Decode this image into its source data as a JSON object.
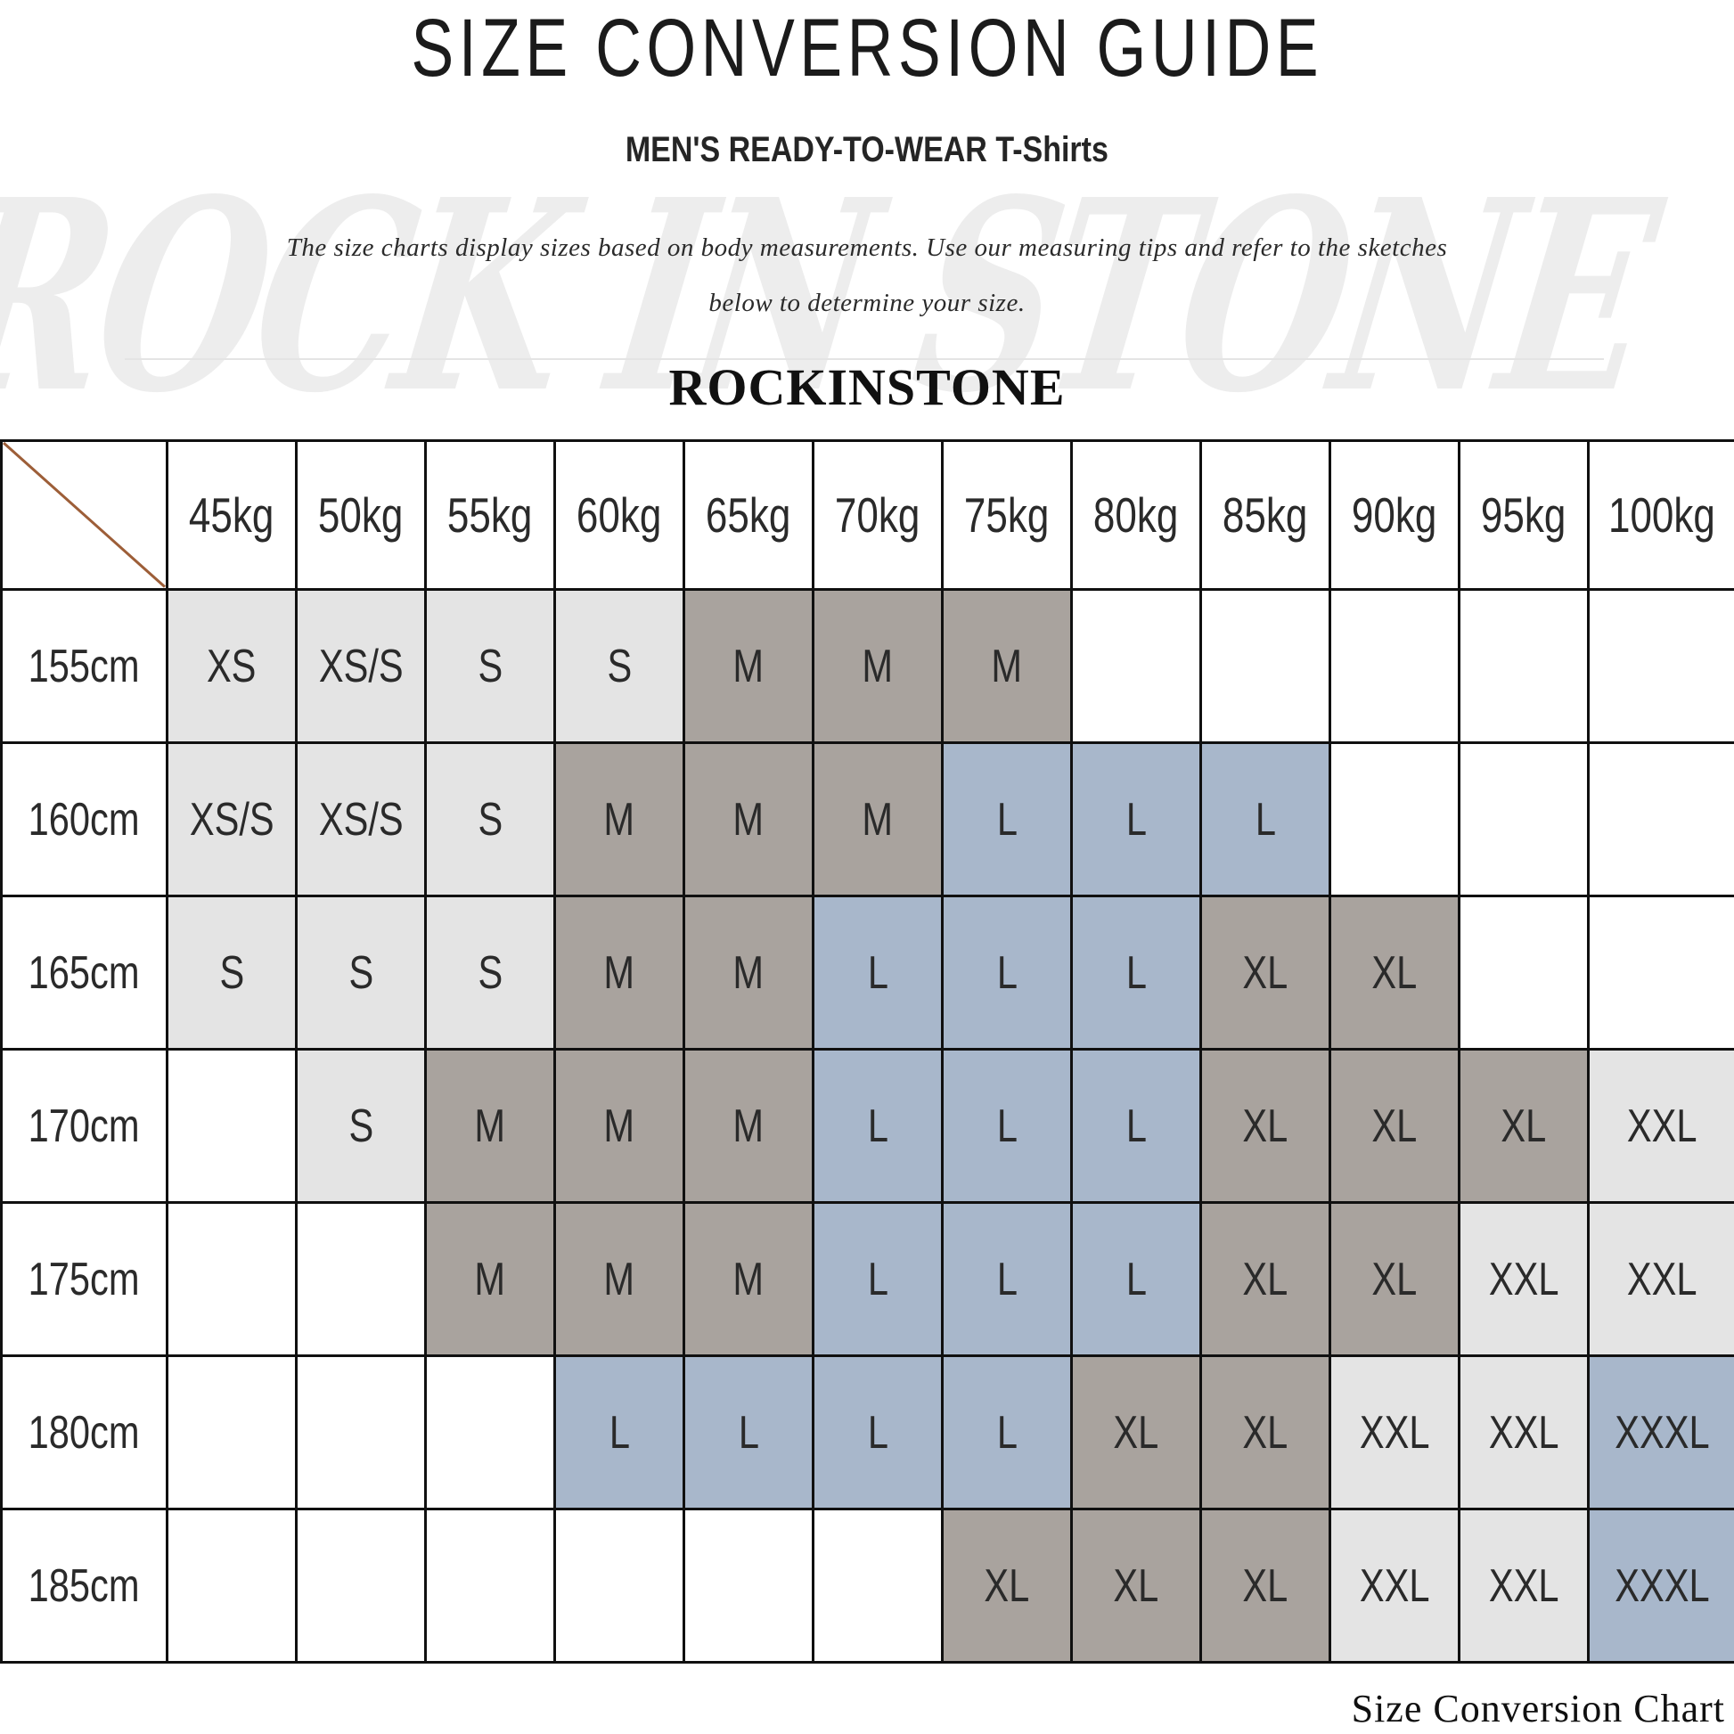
{
  "page": {
    "title": "SIZE CONVERSION GUIDE",
    "subtitle_category": "MEN'S READY-TO-WEAR",
    "subtitle_product": "T-Shirts",
    "description_line1": "The size charts display sizes based on body measurements.  Use our measuring tips and refer to the sketches",
    "description_line2": "below to determine your size.",
    "brand": "ROCKINSTONE",
    "watermark": "ROCK IN STONE",
    "footer_caption": "Size Conversion Chart"
  },
  "colors": {
    "cell_light_gray": "#e4e4e4",
    "cell_dark_taupe": "#a9a39e",
    "cell_steel_blue": "#a8b7cb",
    "table_border": "#101010",
    "diagonal_line": "#9d5e38",
    "watermark_gray": "#ededed"
  },
  "size_table": {
    "corner_label": "",
    "weight_headers": [
      "45kg",
      "50kg",
      "55kg",
      "60kg",
      "65kg",
      "70kg",
      "75kg",
      "80kg",
      "85kg",
      "90kg",
      "95kg",
      "100kg"
    ],
    "rows": [
      {
        "height": "155cm",
        "cells": [
          {
            "size": "XS",
            "bg": "light"
          },
          {
            "size": "XS/S",
            "bg": "light"
          },
          {
            "size": "S",
            "bg": "light"
          },
          {
            "size": "S",
            "bg": "light"
          },
          {
            "size": "M",
            "bg": "taupe"
          },
          {
            "size": "M",
            "bg": "taupe"
          },
          {
            "size": "M",
            "bg": "taupe"
          },
          {
            "size": "",
            "bg": "none"
          },
          {
            "size": "",
            "bg": "none"
          },
          {
            "size": "",
            "bg": "none"
          },
          {
            "size": "",
            "bg": "none"
          },
          {
            "size": "",
            "bg": "none"
          }
        ]
      },
      {
        "height": "160cm",
        "cells": [
          {
            "size": "XS/S",
            "bg": "light"
          },
          {
            "size": "XS/S",
            "bg": "light"
          },
          {
            "size": "S",
            "bg": "light"
          },
          {
            "size": "M",
            "bg": "taupe"
          },
          {
            "size": "M",
            "bg": "taupe"
          },
          {
            "size": "M",
            "bg": "taupe"
          },
          {
            "size": "L",
            "bg": "blue"
          },
          {
            "size": "L",
            "bg": "blue"
          },
          {
            "size": "L",
            "bg": "blue"
          },
          {
            "size": "",
            "bg": "none"
          },
          {
            "size": "",
            "bg": "none"
          },
          {
            "size": "",
            "bg": "none"
          }
        ]
      },
      {
        "height": "165cm",
        "cells": [
          {
            "size": "S",
            "bg": "light"
          },
          {
            "size": "S",
            "bg": "light"
          },
          {
            "size": "S",
            "bg": "light"
          },
          {
            "size": "M",
            "bg": "taupe"
          },
          {
            "size": "M",
            "bg": "taupe"
          },
          {
            "size": "L",
            "bg": "blue"
          },
          {
            "size": "L",
            "bg": "blue"
          },
          {
            "size": "L",
            "bg": "blue"
          },
          {
            "size": "XL",
            "bg": "taupe"
          },
          {
            "size": "XL",
            "bg": "taupe"
          },
          {
            "size": "",
            "bg": "none"
          },
          {
            "size": "",
            "bg": "none"
          }
        ]
      },
      {
        "height": "170cm",
        "cells": [
          {
            "size": "",
            "bg": "none"
          },
          {
            "size": "S",
            "bg": "light"
          },
          {
            "size": "M",
            "bg": "taupe"
          },
          {
            "size": "M",
            "bg": "taupe"
          },
          {
            "size": "M",
            "bg": "taupe"
          },
          {
            "size": "L",
            "bg": "blue"
          },
          {
            "size": "L",
            "bg": "blue"
          },
          {
            "size": "L",
            "bg": "blue"
          },
          {
            "size": "XL",
            "bg": "taupe"
          },
          {
            "size": "XL",
            "bg": "taupe"
          },
          {
            "size": "XL",
            "bg": "taupe"
          },
          {
            "size": "XXL",
            "bg": "light"
          }
        ]
      },
      {
        "height": "175cm",
        "cells": [
          {
            "size": "",
            "bg": "none"
          },
          {
            "size": "",
            "bg": "none"
          },
          {
            "size": "M",
            "bg": "taupe"
          },
          {
            "size": "M",
            "bg": "taupe"
          },
          {
            "size": "M",
            "bg": "taupe"
          },
          {
            "size": "L",
            "bg": "blue"
          },
          {
            "size": "L",
            "bg": "blue"
          },
          {
            "size": "L",
            "bg": "blue"
          },
          {
            "size": "XL",
            "bg": "taupe"
          },
          {
            "size": "XL",
            "bg": "taupe"
          },
          {
            "size": "XXL",
            "bg": "light"
          },
          {
            "size": "XXL",
            "bg": "light"
          }
        ]
      },
      {
        "height": "180cm",
        "cells": [
          {
            "size": "",
            "bg": "none"
          },
          {
            "size": "",
            "bg": "none"
          },
          {
            "size": "",
            "bg": "none"
          },
          {
            "size": "L",
            "bg": "blue"
          },
          {
            "size": "L",
            "bg": "blue"
          },
          {
            "size": "L",
            "bg": "blue"
          },
          {
            "size": "L",
            "bg": "blue"
          },
          {
            "size": "XL",
            "bg": "taupe"
          },
          {
            "size": "XL",
            "bg": "taupe"
          },
          {
            "size": "XXL",
            "bg": "light"
          },
          {
            "size": "XXL",
            "bg": "light"
          },
          {
            "size": "XXXL",
            "bg": "blue"
          }
        ]
      },
      {
        "height": "185cm",
        "cells": [
          {
            "size": "",
            "bg": "none"
          },
          {
            "size": "",
            "bg": "none"
          },
          {
            "size": "",
            "bg": "none"
          },
          {
            "size": "",
            "bg": "none"
          },
          {
            "size": "",
            "bg": "none"
          },
          {
            "size": "",
            "bg": "none"
          },
          {
            "size": "XL",
            "bg": "taupe"
          },
          {
            "size": "XL",
            "bg": "taupe"
          },
          {
            "size": "XL",
            "bg": "taupe"
          },
          {
            "size": "XXL",
            "bg": "light"
          },
          {
            "size": "XXL",
            "bg": "light"
          },
          {
            "size": "XXXL",
            "bg": "blue"
          }
        ]
      }
    ]
  }
}
